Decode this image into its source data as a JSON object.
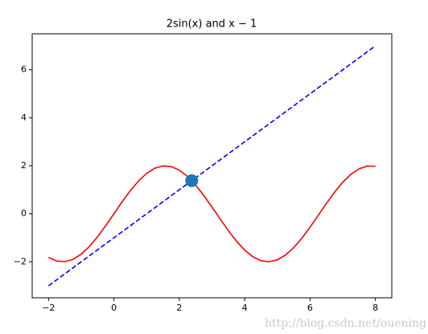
{
  "chart_data": {
    "type": "line",
    "title": "2sin(x) and x − 1",
    "watermark": "http://blog.csdn.net/ouening",
    "xlim": [
      -2.5,
      8.5
    ],
    "ylim": [
      -3.5,
      7.5
    ],
    "xticks": [
      {
        "value": -2,
        "label": "−2"
      },
      0,
      2,
      4,
      6,
      8
    ],
    "yticks": [
      {
        "value": -2,
        "label": "−2"
      },
      0,
      2,
      4,
      6
    ],
    "series": [
      {
        "color": "#ff0000",
        "dash": false,
        "x": [
          -2,
          -1.75,
          -1.5,
          -1.25,
          -1,
          -0.75,
          -0.5,
          -0.25,
          0,
          0.25,
          0.5,
          0.75,
          1,
          1.25,
          1.5,
          1.75,
          2,
          2.25,
          2.5,
          2.75,
          3,
          3.25,
          3.5,
          3.75,
          4,
          4.25,
          4.5,
          4.75,
          5,
          5.25,
          5.5,
          5.75,
          6,
          6.25,
          6.5,
          6.75,
          7,
          7.25,
          7.5,
          7.75,
          8
        ],
        "values": [
          -1.819,
          -1.968,
          -1.995,
          -1.898,
          -1.683,
          -1.363,
          -0.959,
          -0.495,
          0,
          0.495,
          0.959,
          1.363,
          1.683,
          1.898,
          1.995,
          1.968,
          1.819,
          1.556,
          1.197,
          0.763,
          0.282,
          -0.216,
          -0.702,
          -1.143,
          -1.514,
          -1.79,
          -1.955,
          -1.999,
          -1.918,
          -1.718,
          -1.411,
          -1.017,
          -0.559,
          -0.066,
          0.43,
          0.9,
          1.314,
          1.646,
          1.876,
          1.989,
          1.979
        ]
      },
      {
        "color": "#0000ff",
        "dash": true,
        "x": [
          -2,
          8
        ],
        "values": [
          -3,
          7
        ]
      }
    ],
    "points": {
      "color": "#1f77b4",
      "x": [
        2.38
      ],
      "values": [
        1.38
      ]
    }
  }
}
